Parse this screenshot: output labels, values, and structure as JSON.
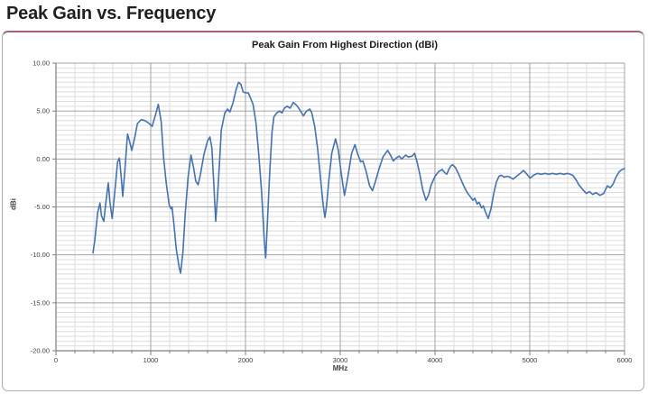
{
  "page": {
    "title": "Peak Gain vs. Frequency"
  },
  "chart": {
    "title": "Peak Gain From Highest Direction (dBi)",
    "ylabel": "dBi",
    "xlabel": "MHz"
  },
  "colors": {
    "accent_rule": "#a2636e",
    "panel_border": "#ababab",
    "grid_minor": "#dedede",
    "grid_major": "#a3a3a3",
    "axis": "#7f7f7f",
    "tick_text": "#3f3f3f",
    "title_text": "#231f20",
    "series_blue": "#4472b0"
  },
  "chart_data": {
    "type": "line",
    "title": "Peak Gain From Highest Direction (dBi)",
    "xlabel": "MHz",
    "ylabel": "dBi",
    "xlim": [
      0,
      6000
    ],
    "ylim": [
      -20,
      10
    ],
    "x_major": 1000,
    "x_minor": 200,
    "y_major": 5,
    "y_minor": 0.5,
    "x_tick_labels": [
      "0",
      "1000",
      "2000",
      "3000",
      "4000",
      "5000",
      "6000"
    ],
    "y_tick_labels": [
      "10.00",
      "5.00",
      "0.00",
      "-5.00",
      "-10.00",
      "-15.00",
      "-20.00"
    ],
    "grid": "both",
    "legend": "none",
    "series": [
      {
        "name": "Peak Gain From Highest Direction",
        "color": "#4472b0",
        "points": [
          [
            390,
            -9.8
          ],
          [
            410,
            -8.5
          ],
          [
            440,
            -5.6
          ],
          [
            465,
            -4.6
          ],
          [
            480,
            -5.9
          ],
          [
            505,
            -6.5
          ],
          [
            530,
            -4.2
          ],
          [
            552,
            -2.5
          ],
          [
            570,
            -4.5
          ],
          [
            593,
            -6.2
          ],
          [
            620,
            -3.5
          ],
          [
            650,
            -0.3
          ],
          [
            670,
            0.1
          ],
          [
            690,
            -2.0
          ],
          [
            705,
            -3.9
          ],
          [
            725,
            -1.5
          ],
          [
            755,
            2.6
          ],
          [
            775,
            1.9
          ],
          [
            800,
            0.9
          ],
          [
            830,
            2.2
          ],
          [
            860,
            3.7
          ],
          [
            900,
            4.1
          ],
          [
            940,
            4.0
          ],
          [
            985,
            3.7
          ],
          [
            1015,
            3.4
          ],
          [
            1050,
            4.6
          ],
          [
            1080,
            5.7
          ],
          [
            1110,
            3.9
          ],
          [
            1135,
            0.2
          ],
          [
            1165,
            -2.6
          ],
          [
            1195,
            -4.8
          ],
          [
            1215,
            -5.2
          ],
          [
            1225,
            -5.0
          ],
          [
            1245,
            -6.8
          ],
          [
            1270,
            -9.4
          ],
          [
            1300,
            -11.3
          ],
          [
            1315,
            -11.9
          ],
          [
            1340,
            -9.7
          ],
          [
            1365,
            -5.6
          ],
          [
            1395,
            -1.8
          ],
          [
            1425,
            0.4
          ],
          [
            1450,
            -0.8
          ],
          [
            1475,
            -2.3
          ],
          [
            1500,
            -2.7
          ],
          [
            1525,
            -1.6
          ],
          [
            1560,
            0.4
          ],
          [
            1600,
            1.9
          ],
          [
            1625,
            2.3
          ],
          [
            1645,
            1.2
          ],
          [
            1665,
            -2.4
          ],
          [
            1686,
            -6.5
          ],
          [
            1705,
            -3.9
          ],
          [
            1725,
            -0.6
          ],
          [
            1745,
            3.0
          ],
          [
            1782,
            4.8
          ],
          [
            1810,
            5.2
          ],
          [
            1835,
            4.9
          ],
          [
            1870,
            5.9
          ],
          [
            1900,
            7.2
          ],
          [
            1927,
            8.0
          ],
          [
            1950,
            7.8
          ],
          [
            1975,
            7.0
          ],
          [
            2000,
            6.9
          ],
          [
            2030,
            6.9
          ],
          [
            2055,
            6.3
          ],
          [
            2080,
            5.7
          ],
          [
            2110,
            3.8
          ],
          [
            2140,
            0.5
          ],
          [
            2170,
            -3.5
          ],
          [
            2200,
            -8.8
          ],
          [
            2213,
            -10.3
          ],
          [
            2230,
            -7.0
          ],
          [
            2255,
            -1.5
          ],
          [
            2280,
            2.8
          ],
          [
            2300,
            4.4
          ],
          [
            2330,
            4.8
          ],
          [
            2360,
            5.0
          ],
          [
            2385,
            4.8
          ],
          [
            2410,
            5.3
          ],
          [
            2440,
            5.5
          ],
          [
            2470,
            5.3
          ],
          [
            2505,
            5.9
          ],
          [
            2540,
            5.6
          ],
          [
            2575,
            5.1
          ],
          [
            2610,
            4.5
          ],
          [
            2645,
            5.0
          ],
          [
            2679,
            5.2
          ],
          [
            2700,
            4.8
          ],
          [
            2730,
            3.4
          ],
          [
            2760,
            1.2
          ],
          [
            2790,
            -1.8
          ],
          [
            2820,
            -4.8
          ],
          [
            2838,
            -6.1
          ],
          [
            2855,
            -4.9
          ],
          [
            2880,
            -2.2
          ],
          [
            2910,
            0.6
          ],
          [
            2950,
            2.1
          ],
          [
            2980,
            0.9
          ],
          [
            3010,
            -1.5
          ],
          [
            3045,
            -3.8
          ],
          [
            3080,
            -1.9
          ],
          [
            3120,
            0.6
          ],
          [
            3155,
            1.5
          ],
          [
            3185,
            0.5
          ],
          [
            3215,
            -0.3
          ],
          [
            3240,
            -0.2
          ],
          [
            3270,
            -1.2
          ],
          [
            3310,
            -2.8
          ],
          [
            3340,
            -3.3
          ],
          [
            3370,
            -2.4
          ],
          [
            3410,
            -1.0
          ],
          [
            3450,
            0.2
          ],
          [
            3500,
            0.9
          ],
          [
            3530,
            0.4
          ],
          [
            3560,
            -0.2
          ],
          [
            3590,
            0.1
          ],
          [
            3620,
            0.3
          ],
          [
            3650,
            0.0
          ],
          [
            3690,
            0.4
          ],
          [
            3720,
            0.2
          ],
          [
            3760,
            0.3
          ],
          [
            3784,
            0.6
          ],
          [
            3810,
            -0.3
          ],
          [
            3840,
            -1.6
          ],
          [
            3870,
            -3.2
          ],
          [
            3905,
            -4.3
          ],
          [
            3930,
            -3.8
          ],
          [
            3960,
            -2.7
          ],
          [
            4000,
            -1.8
          ],
          [
            4040,
            -1.3
          ],
          [
            4076,
            -1.1
          ],
          [
            4100,
            -1.4
          ],
          [
            4124,
            -1.6
          ],
          [
            4150,
            -1.0
          ],
          [
            4170,
            -0.7
          ],
          [
            4187,
            -0.6
          ],
          [
            4215,
            -0.9
          ],
          [
            4250,
            -1.6
          ],
          [
            4298,
            -2.7
          ],
          [
            4340,
            -3.5
          ],
          [
            4370,
            -3.9
          ],
          [
            4400,
            -4.3
          ],
          [
            4420,
            -4.1
          ],
          [
            4445,
            -4.7
          ],
          [
            4465,
            -4.5
          ],
          [
            4490,
            -5.1
          ],
          [
            4510,
            -4.9
          ],
          [
            4535,
            -5.6
          ],
          [
            4562,
            -6.2
          ],
          [
            4590,
            -5.2
          ],
          [
            4620,
            -3.6
          ],
          [
            4648,
            -2.4
          ],
          [
            4675,
            -1.8
          ],
          [
            4700,
            -1.7
          ],
          [
            4730,
            -1.9
          ],
          [
            4760,
            -1.8
          ],
          [
            4790,
            -1.9
          ],
          [
            4825,
            -2.1
          ],
          [
            4860,
            -1.8
          ],
          [
            4900,
            -1.5
          ],
          [
            4933,
            -1.2
          ],
          [
            4970,
            -1.6
          ],
          [
            5003,
            -2.0
          ],
          [
            5040,
            -1.7
          ],
          [
            5080,
            -1.5
          ],
          [
            5120,
            -1.6
          ],
          [
            5160,
            -1.5
          ],
          [
            5200,
            -1.6
          ],
          [
            5240,
            -1.5
          ],
          [
            5280,
            -1.6
          ],
          [
            5320,
            -1.5
          ],
          [
            5360,
            -1.6
          ],
          [
            5400,
            -1.5
          ],
          [
            5454,
            -1.7
          ],
          [
            5490,
            -2.2
          ],
          [
            5518,
            -2.7
          ],
          [
            5560,
            -3.2
          ],
          [
            5597,
            -3.6
          ],
          [
            5630,
            -3.4
          ],
          [
            5665,
            -3.7
          ],
          [
            5700,
            -3.5
          ],
          [
            5740,
            -3.8
          ],
          [
            5780,
            -3.6
          ],
          [
            5819,
            -2.8
          ],
          [
            5848,
            -3.0
          ],
          [
            5880,
            -2.6
          ],
          [
            5910,
            -1.9
          ],
          [
            5946,
            -1.3
          ],
          [
            5975,
            -1.1
          ],
          [
            6000,
            -1.0
          ]
        ]
      }
    ]
  }
}
